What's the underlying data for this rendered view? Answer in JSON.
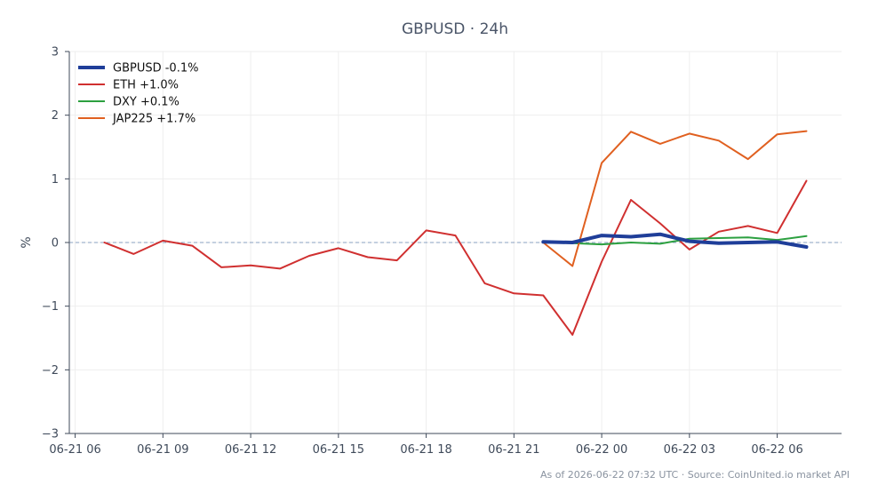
{
  "chart_data": {
    "type": "line",
    "title": "GBPUSD · 24h",
    "ylabel": "%",
    "xlabel": "",
    "ylim": [
      -3,
      3
    ],
    "yticks": [
      -3,
      -2,
      -1,
      0,
      1,
      2,
      3
    ],
    "ytick_labels": [
      "−3",
      "−2",
      "−1",
      "0",
      "1",
      "2",
      "3"
    ],
    "x_unit": "hours since 06-21 06:00",
    "xlim": [
      -0.2,
      26.2
    ],
    "xticks": [
      0,
      3,
      6,
      9,
      12,
      15,
      18,
      21,
      24
    ],
    "xtick_labels": [
      "06-21 06",
      "06-21 09",
      "06-21 12",
      "06-21 15",
      "06-21 18",
      "06-21 21",
      "06-22 00",
      "06-22 03",
      "06-22 06"
    ],
    "zero_line": true,
    "grid": true,
    "legend_position": "top-left",
    "series": [
      {
        "name": "GBPUSD -0.1%",
        "color": "#1f3e99",
        "width": 4,
        "x": [
          16,
          17,
          18,
          19,
          20,
          21,
          22,
          23,
          24,
          25
        ],
        "y": [
          0.01,
          0.0,
          0.11,
          0.09,
          0.13,
          0.02,
          -0.01,
          0.0,
          0.01,
          -0.07
        ]
      },
      {
        "name": "ETH +1.0%",
        "color": "#d03030",
        "width": 2,
        "x": [
          1,
          2,
          3,
          4,
          5,
          6,
          7,
          8,
          9,
          10,
          11,
          12,
          13,
          14,
          15,
          16,
          17,
          18,
          19,
          20,
          21,
          22,
          23,
          24,
          25
        ],
        "y": [
          0.0,
          -0.18,
          0.03,
          -0.05,
          -0.39,
          -0.36,
          -0.41,
          -0.21,
          -0.09,
          -0.23,
          -0.28,
          0.19,
          0.11,
          -0.64,
          -0.8,
          -0.83,
          -1.45,
          -0.3,
          0.67,
          0.3,
          -0.11,
          0.17,
          0.26,
          0.15,
          0.97
        ]
      },
      {
        "name": "DXY +0.1%",
        "color": "#2ca040",
        "width": 2,
        "x": [
          16,
          17,
          18,
          19,
          20,
          21,
          22,
          23,
          24,
          25
        ],
        "y": [
          0.0,
          -0.01,
          -0.03,
          0.0,
          -0.02,
          0.06,
          0.07,
          0.08,
          0.04,
          0.1
        ]
      },
      {
        "name": "JAP225 +1.7%",
        "color": "#e06020",
        "width": 2,
        "x": [
          16,
          17,
          18,
          19,
          20,
          21,
          22,
          23,
          24,
          25
        ],
        "y": [
          0.0,
          -0.37,
          1.25,
          1.74,
          1.55,
          1.71,
          1.6,
          1.31,
          1.7,
          1.75
        ]
      }
    ],
    "footer": "As of 2026-06-22 07:32 UTC · Source: CoinUnited.io market API"
  }
}
